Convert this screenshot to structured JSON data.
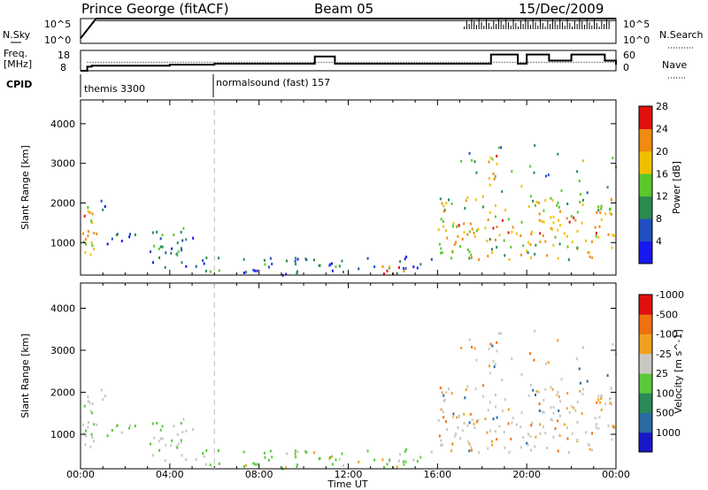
{
  "header": {
    "station": "Prince George (fitACF)",
    "beam": "Beam 05",
    "date": "15/Dec/2009"
  },
  "top_labels": {
    "nsky": "N.Sky",
    "nsky_hi": "10^5",
    "nsky_lo": "10^0",
    "nsearch": "N.Search",
    "nsearch_hi": "10^5",
    "nsearch_lo": "10^0",
    "freq_line1": "Freq.",
    "freq_line2": "[MHz]",
    "freq_hi": "18",
    "freq_lo": "8",
    "nave": "Nave",
    "nave_hi": "60",
    "nave_lo": "0",
    "cpid": "CPID",
    "cpid_1": "themis 3300",
    "cpid_2": "normalsound (fast) 157"
  },
  "chart_data": [
    {
      "type": "line",
      "panel": "noise",
      "x": [
        0,
        0.7,
        3,
        6,
        9,
        12,
        15,
        17,
        18,
        18.5,
        19,
        20,
        21,
        22,
        23,
        24
      ],
      "series": [
        {
          "values": [
            1,
            5,
            5,
            5,
            5,
            5,
            5,
            5,
            5,
            5,
            5,
            5,
            5,
            5,
            5,
            5
          ]
        },
        {
          "values": [
            null,
            4.6,
            4.6,
            4.6,
            4.6,
            4.6,
            4.6,
            4.6,
            4.6,
            4.6,
            4.6,
            4.6,
            4.6,
            4.6,
            4.6,
            4.6
          ]
        }
      ],
      "ylim": [
        0,
        5
      ],
      "xlim": [
        0,
        24
      ]
    },
    {
      "type": "line",
      "panel": "frequency-nave",
      "x": [
        0,
        0.3,
        0.5,
        4,
        6,
        9,
        10,
        10.5,
        11.4,
        12,
        14,
        16,
        17,
        18,
        18.4,
        19.2,
        19.6,
        20,
        20.5,
        21,
        22,
        23,
        23.5,
        24
      ],
      "series": [
        {
          "values": [
            8,
            10,
            10.5,
            11,
            11.5,
            11.5,
            11.5,
            15,
            11.5,
            11.5,
            11.5,
            11.5,
            11.5,
            11.5,
            16,
            16,
            11.5,
            16,
            16,
            13,
            16,
            16,
            13,
            11
          ]
        },
        {
          "values": [
            25,
            25,
            25,
            25,
            25,
            25,
            25,
            25,
            25,
            25,
            25,
            25,
            25,
            25,
            25,
            25,
            25,
            25,
            25,
            25,
            25,
            25,
            25,
            25
          ]
        }
      ],
      "ylim": [
        8,
        18
      ],
      "xlim": [
        0,
        24
      ]
    },
    {
      "type": "heatmap",
      "title": "",
      "xlabel": "",
      "ylabel": "Slant Range [km]",
      "colorbar_label": "Power [dB]",
      "colorbar_ticks": [
        "4",
        "8",
        "12",
        "16",
        "20",
        "24",
        "28"
      ],
      "colorbar_colors": [
        "#1818f0",
        "#2050c0",
        "#2a8a50",
        "#5ac82a",
        "#f0c000",
        "#f08a10",
        "#e01010"
      ],
      "x_ticks": [
        "00:00",
        "04:00",
        "08:00",
        "12:00",
        "16:00",
        "20:00",
        "00:00"
      ],
      "y_ticks": [
        "1000",
        "2000",
        "3000",
        "4000"
      ],
      "xlim": [
        0,
        24
      ],
      "ylim": [
        180,
        4600
      ]
    },
    {
      "type": "heatmap",
      "title": "",
      "xlabel": "Time UT",
      "ylabel": "Slant Range [km]",
      "colorbar_label": "Velocity [m s^-1]",
      "colorbar_ticks": [
        "1000",
        "500",
        "100",
        "25",
        "-25",
        "-100",
        "-500",
        "-1000"
      ],
      "colorbar_colors": [
        "#1818c8",
        "#2a6aa0",
        "#2a8a5a",
        "#5ac83a",
        "#c8c8c0",
        "#f0a020",
        "#f07010",
        "#e01010"
      ],
      "x_ticks": [
        "00:00",
        "04:00",
        "08:00",
        "12:00",
        "16:00",
        "20:00",
        "00:00"
      ],
      "y_ticks": [
        "1000",
        "2000",
        "3000",
        "4000"
      ],
      "xlim": [
        0,
        24
      ],
      "ylim": [
        180,
        4600
      ]
    }
  ]
}
